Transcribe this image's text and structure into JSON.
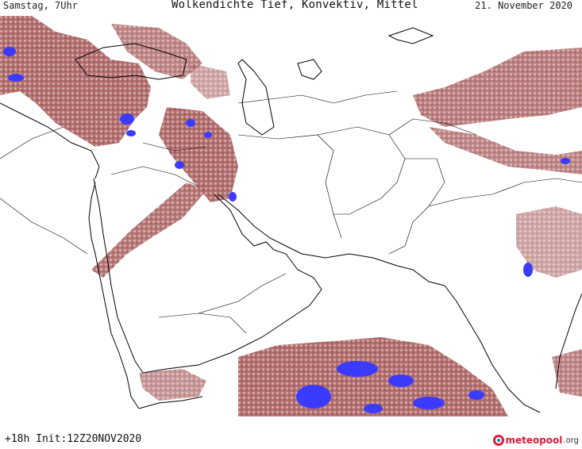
{
  "header": {
    "day_time": "Samstag, 7Uhr",
    "title": "Wolkendichte  Tief, Konvektiv, Mittel",
    "date": "21. November 2020"
  },
  "footer": {
    "run_info": "+18h Init:12Z20NOV2020",
    "logo_text": "meteopool",
    "logo_tld": ".org"
  },
  "colors": {
    "cloud_low": "#c9a0a0",
    "cloud_mid": "#9b4545",
    "cloud_dense": "#7a2b2b",
    "convective": "#3b3bff",
    "borders": "#000000",
    "background": "#ffffff",
    "brand": "#e21b3c"
  },
  "icons": {
    "logo": "meteopool-globe-icon"
  }
}
